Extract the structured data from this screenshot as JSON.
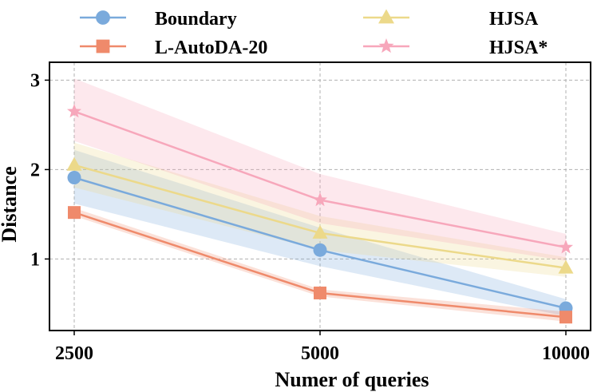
{
  "chart_data": {
    "type": "line",
    "title": "",
    "xlabel": "Numer of queries",
    "ylabel": "Distance",
    "categories": [
      "2500",
      "5000",
      "10000"
    ],
    "ylim": [
      0.2,
      3.2
    ],
    "yticks": [
      1,
      2,
      3
    ],
    "grid": true,
    "legend_position": "top",
    "series": [
      {
        "name": "Boundary",
        "marker": "circle",
        "color": "#7aaadc",
        "values": [
          1.91,
          1.1,
          0.45
        ],
        "lower": [
          1.62,
          0.92,
          0.36
        ],
        "upper": [
          2.22,
          1.35,
          0.55
        ]
      },
      {
        "name": "L-AutoDA-20",
        "marker": "square",
        "color": "#ef8a6b",
        "values": [
          1.52,
          0.62,
          0.35
        ],
        "lower": [
          1.48,
          0.58,
          0.3
        ],
        "upper": [
          1.57,
          0.66,
          0.41
        ]
      },
      {
        "name": "HJSA",
        "marker": "triangle",
        "color": "#ecd98a",
        "values": [
          2.05,
          1.29,
          0.9
        ],
        "lower": [
          1.8,
          1.1,
          0.8
        ],
        "upper": [
          2.3,
          1.48,
          1.02
        ]
      },
      {
        "name": "HJSA*",
        "marker": "star",
        "color": "#f7a7bb",
        "values": [
          2.65,
          1.66,
          1.13
        ],
        "lower": [
          2.32,
          1.4,
          0.98
        ],
        "upper": [
          3.02,
          1.95,
          1.28
        ]
      }
    ]
  }
}
